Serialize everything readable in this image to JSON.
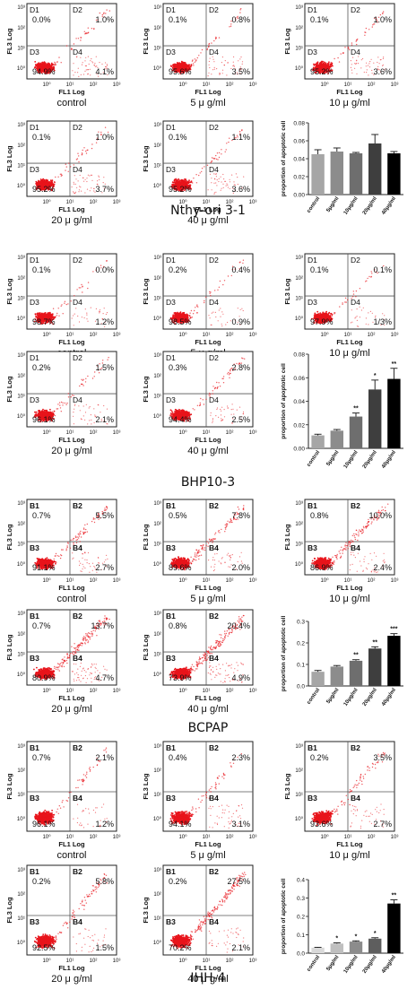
{
  "groups": [
    {
      "title": "Nthy-ori 3-1",
      "style": "D",
      "plots": [
        {
          "cond": "control",
          "q": [
            "0.0%",
            "1.0%",
            "94.9%",
            "4.1%"
          ]
        },
        {
          "cond": "5 μ g/ml",
          "q": [
            "0.1%",
            "0.8%",
            "95.6%",
            "3.5%"
          ]
        },
        {
          "cond": "10 μ g/ml",
          "q": [
            "0.1%",
            "1.0%",
            "95.2%",
            "3.6%"
          ]
        },
        {
          "cond": "20 μ g/ml",
          "q": [
            "0.1%",
            "1.0%",
            "95.2%",
            "3.7%"
          ]
        },
        {
          "cond": "40 μ g/ml",
          "q": [
            "0.1%",
            "1.1%",
            "95.2%",
            "3.6%"
          ]
        }
      ]
    },
    {
      "title": "BHP10-3",
      "style": "D",
      "plots": [
        {
          "cond": "control",
          "q": [
            "0.1%",
            "0.0%",
            "98.7%",
            "1.2%"
          ]
        },
        {
          "cond": "5 μ g/ml",
          "q": [
            "0.2%",
            "0.4%",
            "98.5%",
            "0.9%"
          ]
        },
        {
          "cond": "10 μ g/ml",
          "q": [
            "0.1%",
            "0.1%",
            "97.9%",
            "1/3%"
          ]
        },
        {
          "cond": "20 μ g/ml",
          "q": [
            "0.2%",
            "1.5%",
            "96.1%",
            "2.1%"
          ]
        },
        {
          "cond": "40 μ g/ml",
          "q": [
            "0.3%",
            "2.8%",
            "94.4%",
            "2.5%"
          ]
        }
      ]
    },
    {
      "title": "BCPAP",
      "style": "B",
      "plots": [
        {
          "cond": "control",
          "q": [
            "0.7%",
            "5.5%",
            "91.1%",
            "2.7%"
          ]
        },
        {
          "cond": "5 μ g/ml",
          "q": [
            "0.5%",
            "7.8%",
            "89.6%",
            "2.0%"
          ]
        },
        {
          "cond": "10 μ g/ml",
          "q": [
            "0.8%",
            "10.0%",
            "86.9%",
            "2.4%"
          ]
        },
        {
          "cond": "20 μ g/ml",
          "q": [
            "0.7%",
            "13.7%",
            "80.9%",
            "4.7%"
          ]
        },
        {
          "cond": "40 μ g/ml",
          "q": [
            "0.8%",
            "20.4%",
            "73.9%",
            "4.9%"
          ]
        }
      ]
    },
    {
      "title": "IHH-4",
      "style": "B",
      "plots": [
        {
          "cond": "control",
          "q": [
            "0.7%",
            "2.1%",
            "96.1%",
            "1.2%"
          ]
        },
        {
          "cond": "5 μ g/ml",
          "q": [
            "0.4%",
            "2.3%",
            "94.1%",
            "3.1%"
          ]
        },
        {
          "cond": "10 μ g/ml",
          "q": [
            "0.2%",
            "3.5%",
            "93.6%",
            "2.7%"
          ]
        },
        {
          "cond": "20 μ g/ml",
          "q": [
            "0.2%",
            "5.8%",
            "92.5%",
            "1.5%"
          ]
        },
        {
          "cond": "40 μ g/ml",
          "q": [
            "0.2%",
            "27.5%",
            "70.2%",
            "2.1%"
          ]
        }
      ]
    }
  ],
  "axis": {
    "x": "FL1 Log",
    "y": "FL3 Log",
    "t0": "10⁰",
    "t1": "10¹",
    "t2": "10²",
    "t3": "10³"
  },
  "chart_data": [
    {
      "type": "bar",
      "group": "Nthy-ori 3-1",
      "categories": [
        "control",
        "5μg/ml",
        "10μg/ml",
        "20μg/ml",
        "40μg/ml"
      ],
      "values": [
        0.045,
        0.048,
        0.046,
        0.057,
        0.046
      ],
      "errors": [
        0.005,
        0.004,
        0.001,
        0.01,
        0.002
      ],
      "sig": [
        "",
        "",
        "",
        "",
        ""
      ],
      "colors": [
        "#a6a6a6",
        "#8c8c8c",
        "#6e6e6e",
        "#3e3e3e",
        "#000000"
      ],
      "ylabel": "proportion of apoptotic cell",
      "ylim": [
        0,
        0.08
      ],
      "ticks": [
        "0.00",
        "0.02",
        "0.04",
        "0.06",
        "0.08"
      ]
    },
    {
      "type": "bar",
      "group": "BHP10-3",
      "categories": [
        "control",
        "5μg/ml",
        "10μg/ml",
        "20μg/ml",
        "40μg/ml"
      ],
      "values": [
        0.011,
        0.015,
        0.027,
        0.05,
        0.059
      ],
      "errors": [
        0.001,
        0.001,
        0.003,
        0.008,
        0.009
      ],
      "sig": [
        "",
        "",
        "**",
        "*",
        "**"
      ],
      "colors": [
        "#a6a6a6",
        "#8c8c8c",
        "#6e6e6e",
        "#3e3e3e",
        "#000000"
      ],
      "ylabel": "proportion of apoptotic cell",
      "ylim": [
        0,
        0.08
      ],
      "ticks": [
        "0.00",
        "0.02",
        "0.04",
        "0.06",
        "0.08"
      ]
    },
    {
      "type": "bar",
      "group": "BCPAP",
      "categories": [
        "control",
        "5μg/ml",
        "10μg/ml",
        "20μg/ml",
        "40μg/ml"
      ],
      "values": [
        0.066,
        0.09,
        0.117,
        0.174,
        0.233
      ],
      "errors": [
        0.006,
        0.005,
        0.005,
        0.008,
        0.01
      ],
      "sig": [
        "",
        "",
        "**",
        "**",
        "***"
      ],
      "colors": [
        "#a6a6a6",
        "#8c8c8c",
        "#6e6e6e",
        "#3e3e3e",
        "#000000"
      ],
      "ylabel": "proportion of apoptotic cell",
      "ylim": [
        0,
        0.3
      ],
      "ticks": [
        "0.0",
        "0.1",
        "0.2",
        "0.3"
      ]
    },
    {
      "type": "bar",
      "group": "IHH-4",
      "categories": [
        "control",
        "5μg/ml",
        "10μg/ml",
        "20μg/ml",
        "40μg/ml"
      ],
      "values": [
        0.03,
        0.052,
        0.063,
        0.079,
        0.27
      ],
      "errors": [
        0.002,
        0.004,
        0.004,
        0.005,
        0.02
      ],
      "sig": [
        "",
        "*",
        "*",
        "*",
        "**"
      ],
      "colors": [
        "#d9d9d9",
        "#bfbfbf",
        "#8c8c8c",
        "#5e5e5e",
        "#000000"
      ],
      "ylabel": "proportion of apoptotic cell",
      "ylim": [
        0,
        0.4
      ],
      "ticks": [
        "0.0",
        "0.1",
        "0.2",
        "0.3",
        "0.4"
      ]
    }
  ]
}
